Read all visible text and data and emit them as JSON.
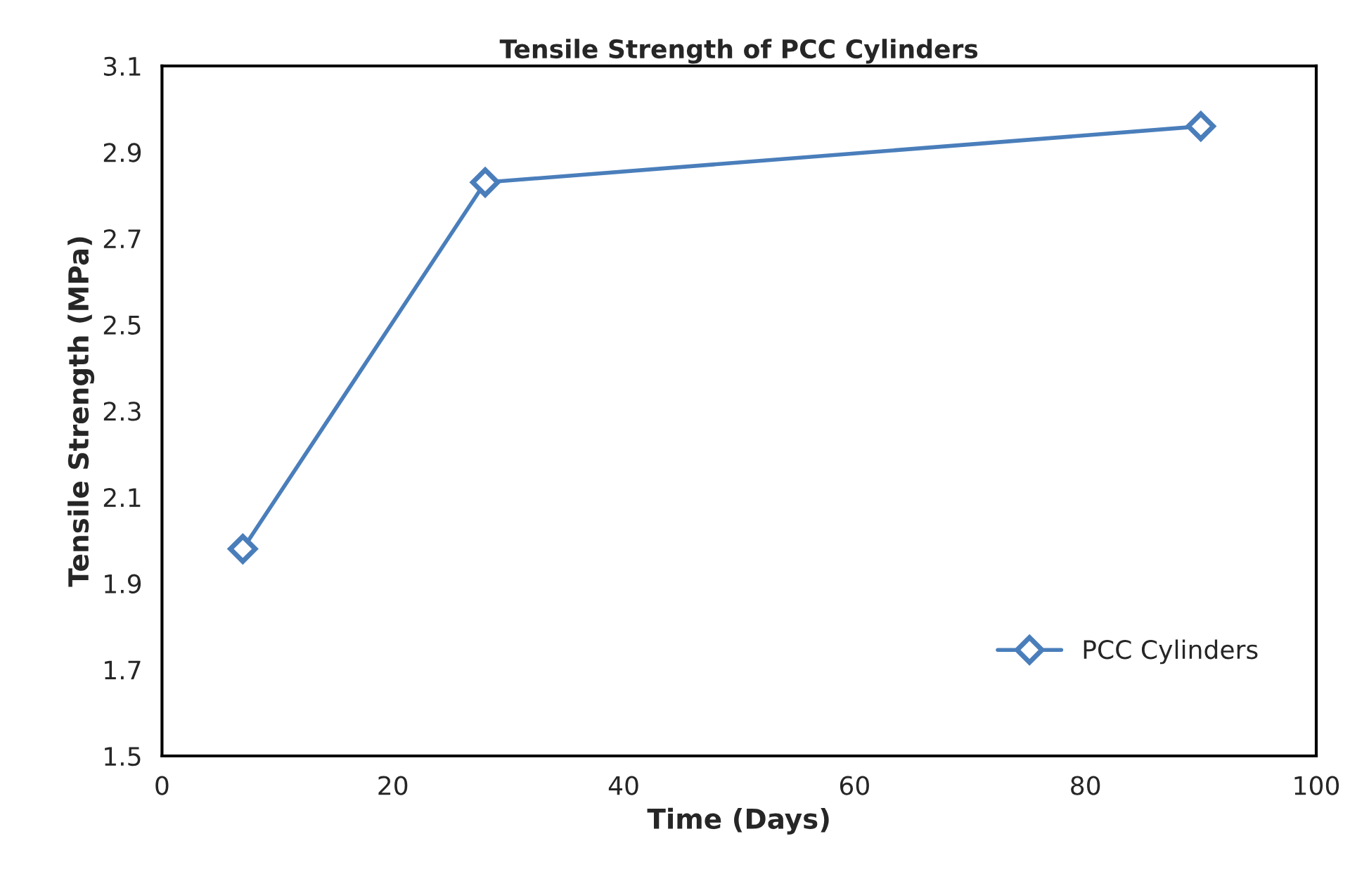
{
  "chart_data": {
    "type": "line",
    "title": "Tensile Strength of PCC Cylinders",
    "xlabel": "Time (Days)",
    "ylabel": "Tensile Strength (MPa)",
    "x": [
      7,
      28,
      90
    ],
    "series": [
      {
        "name": "PCC Cylinders",
        "color": "#4a7ebb",
        "values": [
          1.98,
          2.83,
          2.96
        ]
      }
    ],
    "xlim": [
      0,
      100
    ],
    "xticks": [
      0,
      20,
      40,
      60,
      80,
      100
    ],
    "ylim": [
      1.5,
      3.1
    ],
    "yticks": [
      1.5,
      1.7,
      1.9,
      2.1,
      2.3,
      2.5,
      2.7,
      2.9,
      3.1
    ],
    "grid": false,
    "legend": "bottom right",
    "marker": "diamond",
    "line_style": "solid"
  }
}
